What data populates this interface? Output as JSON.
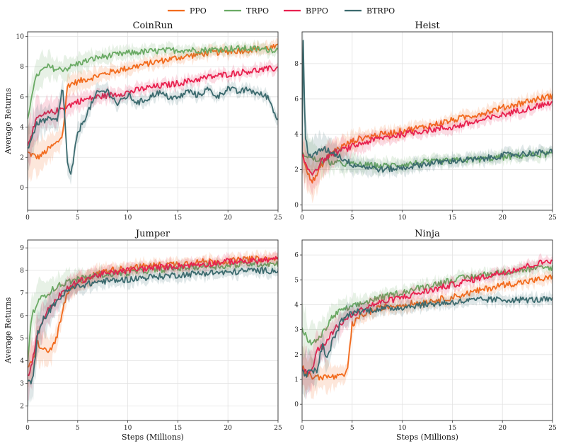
{
  "chart_data": {
    "type": "line",
    "legend": {
      "placement": "top-center",
      "entries": [
        {
          "name": "PPO",
          "color": "#f26b1d"
        },
        {
          "name": "TRPO",
          "color": "#6aaa64"
        },
        {
          "name": "BPPO",
          "color": "#e8214f"
        },
        {
          "name": "BTRPO",
          "color": "#3b6a6e"
        }
      ]
    },
    "xlabel": "Steps (Millions)",
    "ylabel": "Average Returns",
    "xlim": [
      0,
      25
    ],
    "xticks": [
      0,
      5,
      10,
      15,
      20,
      25
    ],
    "grid": true,
    "panels": [
      {
        "title": "CoinRun",
        "ylim": [
          -1.5,
          10.3
        ],
        "yticks": [
          0,
          2,
          4,
          6,
          8,
          10
        ],
        "series": [
          {
            "name": "PPO",
            "x": [
              0,
              1,
              1.5,
              2,
              3,
              3.5,
              4,
              5,
              6,
              7,
              8,
              10,
              12,
              15,
              18,
              20,
              22,
              25
            ],
            "y": [
              2.3,
              2.0,
              2.2,
              2.5,
              3.0,
              3.5,
              6.8,
              7.0,
              7.2,
              7.4,
              7.6,
              7.9,
              8.2,
              8.6,
              8.9,
              9.0,
              9.1,
              9.3
            ]
          },
          {
            "name": "TRPO",
            "x": [
              0,
              0.5,
              1,
              2,
              3,
              4,
              5,
              7,
              10,
              12,
              15,
              18,
              20,
              22,
              25
            ],
            "y": [
              4.5,
              6.5,
              7.5,
              8.0,
              7.8,
              7.9,
              8.2,
              8.6,
              8.9,
              9.0,
              9.1,
              9.1,
              9.2,
              9.2,
              9.1
            ]
          },
          {
            "name": "BPPO",
            "x": [
              0,
              1,
              2,
              3,
              4,
              5,
              7,
              10,
              12,
              15,
              18,
              20,
              22,
              25
            ],
            "y": [
              2.9,
              4.6,
              4.9,
              5.1,
              5.4,
              5.7,
              6.0,
              6.3,
              6.6,
              6.9,
              7.3,
              7.5,
              7.7,
              7.9
            ]
          },
          {
            "name": "BTRPO",
            "x": [
              0,
              1,
              2,
              3,
              3.5,
              4,
              4.3,
              5,
              6,
              7,
              8,
              9,
              10,
              11,
              12,
              13,
              14,
              15,
              16,
              17,
              18,
              19,
              20,
              21,
              22,
              23,
              24,
              25
            ],
            "y": [
              2.6,
              4.3,
              4.5,
              4.4,
              6.8,
              1.5,
              0.7,
              3.6,
              5.0,
              6.3,
              6.4,
              5.5,
              6.1,
              5.6,
              5.9,
              6.3,
              6.0,
              5.9,
              6.4,
              6.1,
              6.5,
              6.0,
              6.6,
              6.3,
              6.5,
              6.2,
              6.0,
              4.4
            ]
          }
        ]
      },
      {
        "title": "Heist",
        "ylim": [
          -0.3,
          9.8
        ],
        "yticks": [
          0,
          2,
          4,
          6,
          8
        ],
        "series": [
          {
            "name": "PPO",
            "x": [
              0,
              0.5,
              1,
              1.5,
              2,
              3,
              4,
              5,
              6,
              8,
              10,
              12,
              15,
              18,
              20,
              22,
              25
            ],
            "y": [
              3.0,
              2.0,
              1.3,
              1.7,
              2.3,
              3.0,
              3.3,
              3.6,
              3.8,
              4.0,
              4.2,
              4.4,
              4.8,
              5.2,
              5.5,
              5.8,
              6.2
            ]
          },
          {
            "name": "TRPO",
            "x": [
              0,
              0.3,
              1,
              2,
              3,
              5,
              8,
              10,
              12,
              15,
              18,
              20,
              22,
              25
            ],
            "y": [
              2.7,
              2.9,
              2.6,
              2.5,
              2.4,
              2.3,
              2.2,
              2.3,
              2.4,
              2.5,
              2.6,
              2.7,
              2.8,
              2.9
            ]
          },
          {
            "name": "BPPO",
            "x": [
              0,
              0.5,
              1,
              1.5,
              2,
              3,
              4,
              5,
              6,
              8,
              10,
              12,
              15,
              18,
              20,
              22,
              25
            ],
            "y": [
              2.8,
              2.1,
              1.8,
              2.1,
              2.5,
              2.9,
              3.1,
              3.3,
              3.5,
              3.8,
              4.0,
              4.2,
              4.4,
              4.8,
              5.1,
              5.4,
              5.8
            ]
          },
          {
            "name": "BTRPO",
            "x": [
              0,
              0.1,
              0.3,
              0.6,
              1,
              2,
              3,
              5,
              8,
              10,
              12,
              15,
              18,
              20,
              22,
              25
            ],
            "y": [
              2.7,
              9.7,
              4.0,
              3.0,
              2.7,
              3.2,
              3.0,
              2.3,
              2.0,
              2.1,
              2.3,
              2.5,
              2.6,
              2.8,
              2.9,
              3.0
            ]
          }
        ]
      },
      {
        "title": "Jumper",
        "ylim": [
          1.35,
          9.35
        ],
        "yticks": [
          2,
          3,
          4,
          5,
          6,
          7,
          8,
          9
        ],
        "series": [
          {
            "name": "PPO",
            "x": [
              0,
              0.5,
              1,
              1.5,
              2,
              2.5,
              3,
              3.5,
              4,
              5,
              6,
              8,
              10,
              12,
              15,
              18,
              20,
              22,
              25
            ],
            "y": [
              3.6,
              4.0,
              4.8,
              4.5,
              4.4,
              4.6,
              5.2,
              6.2,
              7.0,
              7.4,
              7.7,
              8.0,
              8.1,
              8.2,
              8.3,
              8.4,
              8.4,
              8.5,
              8.5
            ]
          },
          {
            "name": "TRPO",
            "x": [
              0,
              0.3,
              0.6,
              1,
              2,
              3,
              4,
              5,
              7,
              10,
              12,
              15,
              18,
              20,
              22,
              25
            ],
            "y": [
              4.0,
              5.5,
              6.2,
              6.6,
              7.0,
              7.3,
              7.5,
              7.6,
              7.8,
              7.9,
              8.0,
              8.1,
              8.2,
              8.2,
              8.3,
              8.3
            ]
          },
          {
            "name": "BPPO",
            "x": [
              0,
              0.5,
              1,
              1.5,
              2,
              3,
              4,
              5,
              7,
              10,
              12,
              15,
              18,
              20,
              22,
              25
            ],
            "y": [
              3.3,
              4.0,
              5.2,
              5.8,
              6.2,
              6.8,
              7.2,
              7.5,
              7.8,
              8.0,
              8.1,
              8.2,
              8.3,
              8.4,
              8.4,
              8.5
            ]
          },
          {
            "name": "BTRPO",
            "x": [
              0,
              0.4,
              0.8,
              1,
              1.5,
              2,
              3,
              4,
              5,
              7,
              10,
              12,
              15,
              18,
              20,
              22,
              25
            ],
            "y": [
              3.2,
              2.9,
              4.2,
              5.2,
              5.8,
              6.1,
              6.7,
              7.1,
              7.3,
              7.5,
              7.6,
              7.7,
              7.8,
              7.9,
              7.9,
              8.0,
              8.0
            ]
          }
        ]
      },
      {
        "title": "Ninja",
        "ylim": [
          -0.65,
          6.6
        ],
        "yticks": [
          0,
          1,
          2,
          3,
          4,
          5,
          6
        ],
        "series": [
          {
            "name": "PPO",
            "x": [
              0,
              0.5,
              1,
              2,
              3,
              4,
              4.5,
              5,
              6,
              8,
              10,
              12,
              15,
              18,
              20,
              22,
              25
            ],
            "y": [
              1.5,
              1.2,
              1.1,
              1.1,
              1.1,
              1.1,
              1.3,
              3.2,
              3.6,
              3.9,
              4.0,
              4.1,
              4.3,
              4.6,
              4.8,
              4.9,
              5.1
            ]
          },
          {
            "name": "TRPO",
            "x": [
              0,
              0.3,
              0.6,
              1,
              2,
              3,
              4,
              5,
              7,
              10,
              12,
              15,
              18,
              20,
              22,
              25
            ],
            "y": [
              3.1,
              2.8,
              2.6,
              2.4,
              2.8,
              3.5,
              3.8,
              3.9,
              4.2,
              4.5,
              4.7,
              5.0,
              5.2,
              5.3,
              5.4,
              5.5
            ]
          },
          {
            "name": "BPPO",
            "x": [
              0,
              0.5,
              1,
              1.5,
              2,
              3,
              4,
              5,
              7,
              10,
              12,
              15,
              18,
              20,
              22,
              25
            ],
            "y": [
              1.4,
              1.3,
              1.4,
              2.2,
              2.3,
              2.9,
              3.3,
              3.6,
              4.0,
              4.3,
              4.5,
              4.8,
              5.1,
              5.3,
              5.5,
              5.8
            ]
          },
          {
            "name": "BTRPO",
            "x": [
              0,
              0.5,
              1,
              1.5,
              2,
              2.5,
              3,
              4,
              5,
              7,
              10,
              12,
              15,
              18,
              20,
              22,
              25
            ],
            "y": [
              1.3,
              1.2,
              1.4,
              1.3,
              2.4,
              1.8,
              2.5,
              3.4,
              3.7,
              3.8,
              3.9,
              4.0,
              4.1,
              4.2,
              4.2,
              4.2,
              4.2
            ]
          }
        ]
      }
    ]
  }
}
